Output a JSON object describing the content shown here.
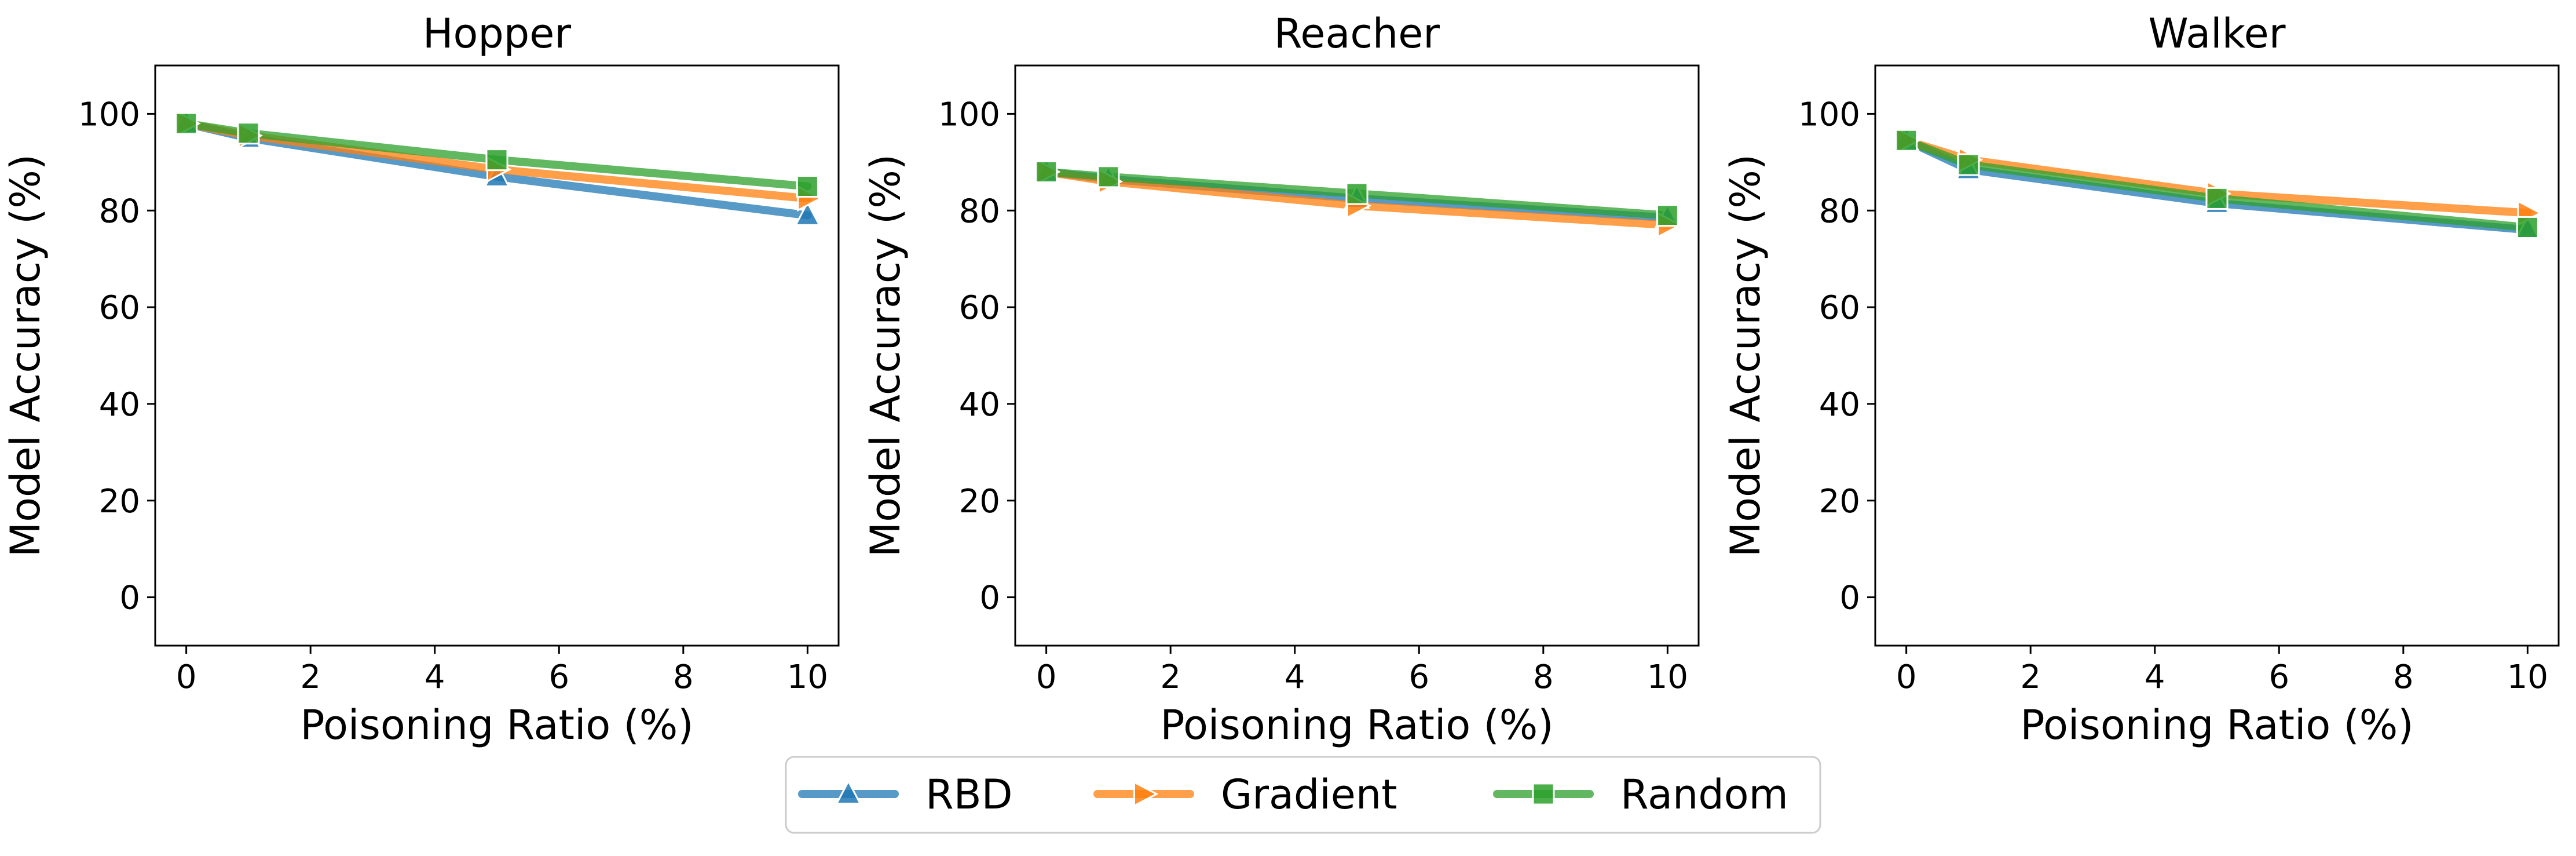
{
  "chart_data": [
    {
      "type": "line",
      "title": "Hopper",
      "xlabel": "Poisoning Ratio (%)",
      "ylabel": "Model Accuracy (%)",
      "xlim": [
        -0.5,
        10.5
      ],
      "ylim": [
        -10,
        110
      ],
      "xticks": [
        0,
        2,
        4,
        6,
        8,
        10
      ],
      "yticks": [
        0,
        20,
        40,
        60,
        80,
        100
      ],
      "grid": false,
      "x": [
        0,
        1,
        5,
        10
      ],
      "series": [
        {
          "name": "RBD",
          "values": [
            98,
            95,
            87,
            79
          ]
        },
        {
          "name": "Gradient",
          "values": [
            98,
            95.5,
            88.5,
            82.5
          ]
        },
        {
          "name": "Random",
          "values": [
            98,
            96,
            90.5,
            85
          ]
        }
      ]
    },
    {
      "type": "line",
      "title": "Reacher",
      "xlabel": "Poisoning Ratio (%)",
      "ylabel": "Model Accuracy (%)",
      "xlim": [
        -0.5,
        10.5
      ],
      "ylim": [
        -10,
        110
      ],
      "xticks": [
        0,
        2,
        4,
        6,
        8,
        10
      ],
      "yticks": [
        0,
        20,
        40,
        60,
        80,
        100
      ],
      "grid": false,
      "x": [
        0,
        1,
        5,
        10
      ],
      "series": [
        {
          "name": "RBD",
          "values": [
            88,
            86.5,
            82.5,
            78.5
          ]
        },
        {
          "name": "Gradient",
          "values": [
            88,
            86,
            81,
            77
          ]
        },
        {
          "name": "Random",
          "values": [
            88,
            87,
            83.5,
            79
          ]
        }
      ]
    },
    {
      "type": "line",
      "title": "Walker",
      "xlabel": "Poisoning Ratio (%)",
      "ylabel": "Model Accuracy (%)",
      "xlim": [
        -0.5,
        10.5
      ],
      "ylim": [
        -10,
        110
      ],
      "xticks": [
        0,
        2,
        4,
        6,
        8,
        10
      ],
      "yticks": [
        0,
        20,
        40,
        60,
        80,
        100
      ],
      "grid": false,
      "x": [
        0,
        1,
        5,
        10
      ],
      "series": [
        {
          "name": "RBD",
          "values": [
            94.5,
            88.5,
            81.5,
            76
          ]
        },
        {
          "name": "Gradient",
          "values": [
            94.5,
            90.5,
            83.5,
            79.5
          ]
        },
        {
          "name": "Random",
          "values": [
            94.5,
            89.5,
            82.5,
            76.5
          ]
        }
      ]
    }
  ],
  "legend": {
    "placement": "bottom-center",
    "entries": [
      {
        "name": "RBD",
        "color": "#1f77b4",
        "marker": "triangle-up"
      },
      {
        "name": "Gradient",
        "color": "#ff7f0e",
        "marker": "triangle-right"
      },
      {
        "name": "Random",
        "color": "#2ca02c",
        "marker": "square"
      }
    ]
  }
}
